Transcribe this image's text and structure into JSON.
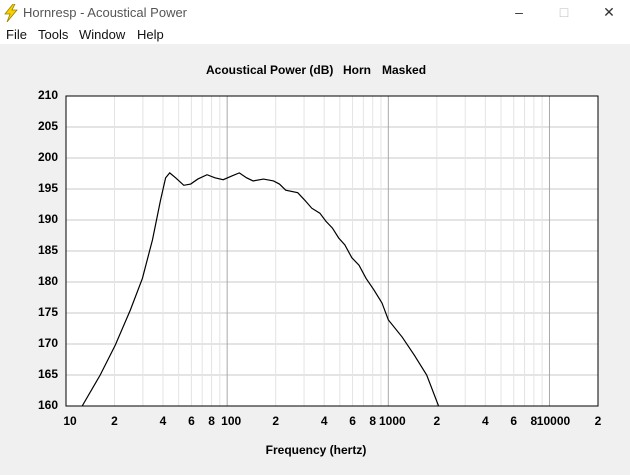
{
  "window": {
    "title": "Hornresp - Acoustical Power"
  },
  "menu": [
    "File",
    "Tools",
    "Window",
    "Help"
  ],
  "chart_data": {
    "type": "line",
    "title": "Acoustical Power (dB)",
    "annotations": [
      "Horn",
      "Masked"
    ],
    "x_label": "Frequency (hertz)",
    "x_scale": "log",
    "xlim": [
      10,
      20000
    ],
    "xticks": [
      10,
      {
        "value": 20,
        "label": "2"
      },
      {
        "value": 40,
        "label": "4"
      },
      {
        "value": 60,
        "label": "6"
      },
      {
        "value": 80,
        "label": "8"
      },
      100,
      {
        "value": 200,
        "label": "2"
      },
      {
        "value": 400,
        "label": "4"
      },
      {
        "value": 600,
        "label": "6"
      },
      {
        "value": 800,
        "label": "8"
      },
      1000,
      {
        "value": 2000,
        "label": "2"
      },
      {
        "value": 4000,
        "label": "4"
      },
      {
        "value": 6000,
        "label": "6"
      },
      {
        "value": 8000,
        "label": "8"
      },
      10000,
      {
        "value": 20000,
        "label": "2"
      }
    ],
    "xminor": [
      30,
      50,
      70,
      90,
      300,
      500,
      700,
      900,
      3000,
      5000,
      7000,
      9000
    ],
    "ylim": [
      160,
      210
    ],
    "yticks": [
      160,
      165,
      170,
      175,
      180,
      185,
      190,
      195,
      200,
      205,
      210
    ],
    "grid": true,
    "x": [
      12.6,
      16.3,
      20.2,
      25.1,
      29.8,
      34.4,
      38.6,
      41.5,
      44.0,
      47.9,
      53.8,
      59.4,
      65.7,
      75,
      84,
      94.5,
      107,
      119,
      132,
      145,
      168,
      194,
      211,
      231,
      274,
      303,
      335,
      376,
      410,
      450,
      492,
      537,
      594,
      658,
      727,
      815,
      914,
      1000,
      1220,
      1450,
      1730,
      2050
    ],
    "series": [
      {
        "color": "#000000",
        "values": [
          160,
          165,
          169.8,
          175.5,
          180.6,
          186.8,
          193.2,
          196.8,
          197.6,
          196.8,
          195.6,
          195.8,
          196.6,
          197.3,
          196.8,
          196.5,
          197.1,
          197.6,
          196.8,
          196.3,
          196.6,
          196.3,
          195.8,
          194.8,
          194.4,
          193.2,
          191.9,
          191.1,
          189.8,
          188.7,
          187.1,
          186,
          183.9,
          182.7,
          180.6,
          178.7,
          176.6,
          173.9,
          171.1,
          168.2,
          165,
          160
        ]
      }
    ]
  }
}
